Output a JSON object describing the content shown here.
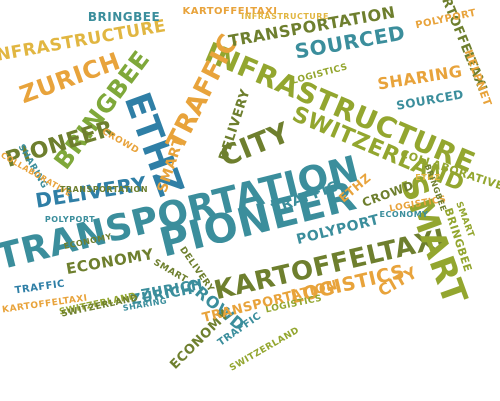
{
  "palette": {
    "teal": "#3b8e9c",
    "blue": "#2f7fa6",
    "darkgreen": "#6e7f2e",
    "olive": "#93a62f",
    "green": "#7fa83a",
    "orange": "#e8a33b",
    "gold": "#e1b641"
  },
  "words": [
    {
      "id": "transportation-main",
      "text": "TRANSPORTATION",
      "color": "teal"
    },
    {
      "id": "pioneer-main",
      "text": "PIONEER",
      "color": "teal"
    },
    {
      "id": "infrastructure-main",
      "text": "INFRASTRUCTURE",
      "color": "olive"
    },
    {
      "id": "kartoffeltaxi-main",
      "text": "KARTOFFELTAXI",
      "color": "darkgreen"
    },
    {
      "id": "smart-main",
      "text": "SMART",
      "color": "olive"
    },
    {
      "id": "ethz-main",
      "text": "ETHZ",
      "color": "blue"
    },
    {
      "id": "city-main",
      "text": "CITY",
      "color": "darkgreen"
    },
    {
      "id": "traffic-main",
      "text": "TRAFFIC",
      "color": "orange"
    },
    {
      "id": "zurich-main",
      "text": "ZURICH",
      "color": "orange"
    },
    {
      "id": "bringbee-main",
      "text": "BRINGBEE",
      "color": "green"
    },
    {
      "id": "pioneer-left",
      "text": "PIONEER",
      "color": "darkgreen"
    },
    {
      "id": "delivery-main",
      "text": "DELIVERY",
      "color": "blue"
    },
    {
      "id": "economy-main",
      "text": "ECONOMY",
      "color": "darkgreen"
    },
    {
      "id": "crowd-main",
      "text": "CROWD",
      "color": "teal"
    },
    {
      "id": "logistics-main",
      "text": "LOGISTICS",
      "color": "orange"
    },
    {
      "id": "sourced-main",
      "text": "SOURCED",
      "color": "teal"
    },
    {
      "id": "sharing-main",
      "text": "SHARING",
      "color": "orange"
    },
    {
      "id": "switzerland-main",
      "text": "SWITZERLAND",
      "color": "olive"
    },
    {
      "id": "transportation-top",
      "text": "TRANSPORTATION",
      "color": "darkgreen"
    },
    {
      "id": "infrastructure-top",
      "text": "INFRASTRUCTURE",
      "color": "gold"
    },
    {
      "id": "kartoffeltaxi-right",
      "text": "KARTOFFELTAXI",
      "color": "darkgreen"
    },
    {
      "id": "delivery-mid",
      "text": "DELIVERY",
      "color": "darkgreen"
    },
    {
      "id": "smart-small",
      "text": "SMART",
      "color": "orange"
    },
    {
      "id": "polyport-top",
      "text": "POLYPORT",
      "color": "orange"
    },
    {
      "id": "polyport-mid",
      "text": "POLYPORT",
      "color": "teal"
    },
    {
      "id": "kartoffeltaxi-top",
      "text": "KARTOFFELTAXI",
      "color": "orange"
    },
    {
      "id": "bringbee-top",
      "text": "BRINGBEE",
      "color": "teal"
    },
    {
      "id": "collaborative-top",
      "text": "COLLABORATIVE",
      "color": "olive"
    },
    {
      "id": "infrastructure-small",
      "text": "INFRASTRUCTURE",
      "color": "gold"
    },
    {
      "id": "zurich-small",
      "text": "ZURICH",
      "color": "teal"
    },
    {
      "id": "switzerland-small",
      "text": "SWITZERLAND",
      "color": "olive"
    },
    {
      "id": "logistics-small",
      "text": "LOGISTICS",
      "color": "olive"
    },
    {
      "id": "sharing-small",
      "text": "SHARING",
      "color": "teal"
    },
    {
      "id": "sourced-small",
      "text": "SOURCED",
      "color": "teal"
    },
    {
      "id": "helpnet",
      "text": "HELPNET",
      "color": "orange"
    },
    {
      "id": "ethz-small",
      "text": "ETHZ",
      "color": "orange"
    },
    {
      "id": "smart-right",
      "text": "SMART",
      "color": "olive"
    },
    {
      "id": "traffic-mid",
      "text": "TRAFFIC",
      "color": "teal"
    },
    {
      "id": "crowd-mid",
      "text": "CROWD",
      "color": "darkgreen"
    },
    {
      "id": "sharing-left",
      "text": "SHARING",
      "color": "teal"
    },
    {
      "id": "collaborative-left",
      "text": "COLLABORATIVE",
      "color": "orange"
    },
    {
      "id": "economy-left",
      "text": "ECONOMY",
      "color": "darkgreen"
    },
    {
      "id": "traffic-bottom",
      "text": "TRAFFIC",
      "color": "blue"
    },
    {
      "id": "kartoffeltaxi-bottom",
      "text": "KARTOFFELTAXI",
      "color": "orange"
    },
    {
      "id": "switzerland-bottom",
      "text": "SWITZERLAND",
      "color": "darkgreen"
    },
    {
      "id": "zurich-bottom",
      "text": "ZURICH",
      "color": "teal"
    },
    {
      "id": "logistics-bottom",
      "text": "LOGISTICS",
      "color": "olive"
    },
    {
      "id": "economy-bottom",
      "text": "ECONOMY",
      "color": "darkgreen"
    },
    {
      "id": "traffic-tail",
      "text": "TRAFFIC",
      "color": "teal"
    },
    {
      "id": "transportation-tail",
      "text": "TRANSPORTATION",
      "color": "orange"
    },
    {
      "id": "city-bottom",
      "text": "CITY",
      "color": "orange"
    },
    {
      "id": "bringbee-right",
      "text": "BRINGBEE",
      "color": "olive"
    },
    {
      "id": "switzerland-tail",
      "text": "SWITZERLAND",
      "color": "olive"
    },
    {
      "id": "delivery-bottom",
      "text": "DELIVERY",
      "color": "darkgreen"
    },
    {
      "id": "smart-bottom",
      "text": "SMART",
      "color": "darkgreen"
    },
    {
      "id": "crowd-bottom",
      "text": "CROWD",
      "color": "orange"
    },
    {
      "id": "logistics-right",
      "text": "LOGISTICS",
      "color": "orange"
    },
    {
      "id": "economy-right",
      "text": "ECONOMY",
      "color": "teal"
    },
    {
      "id": "ethz-bottom",
      "text": "ETHZ",
      "color": "gold"
    },
    {
      "id": "bringbee-bottom",
      "text": "BRINGBEE",
      "color": "darkgreen"
    },
    {
      "id": "polyport-left",
      "text": "POLYPORT",
      "color": "teal"
    },
    {
      "id": "transportation-mid",
      "text": "TRANSPORTATION",
      "color": "darkgreen"
    }
  ]
}
